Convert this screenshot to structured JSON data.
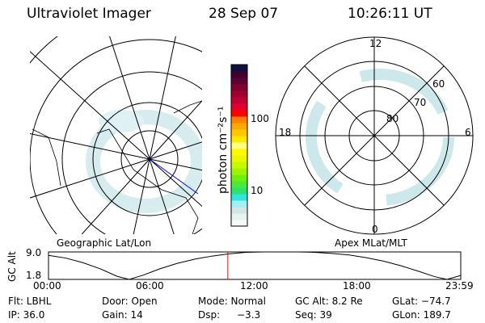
{
  "header": {
    "instrument": "Ultraviolet Imager",
    "date": "28 Sep 07",
    "time": "10:26:11 UT"
  },
  "colorbar": {
    "label": "photon cm⁻²s⁻¹",
    "ticks": [
      "100",
      "10"
    ],
    "colors": [
      "#f4faf6",
      "#e6f2ec",
      "#d2e6e6",
      "#9ef0f4",
      "#2ee6dc",
      "#2ee06e",
      "#4ae838",
      "#6cf010",
      "#a0f400",
      "#c8f800",
      "#e8f800",
      "#fff800",
      "#ffff80",
      "#ffe800",
      "#ffc800",
      "#ffa800",
      "#ff8000",
      "#ff0000",
      "#e00030",
      "#c00030",
      "#a00030",
      "#800030",
      "#600030",
      "#400030",
      "#101040"
    ]
  },
  "left_panel": {
    "label": "Geographic Lat/Lon"
  },
  "right_panel": {
    "label": "Apex MLat/MLT",
    "mlt_labels": [
      "12",
      "18",
      "6",
      "0"
    ],
    "lat_labels": [
      "80",
      "70",
      "60"
    ]
  },
  "chart_data": {
    "type": "line",
    "ylabel": "GC Alt",
    "yticks": [
      "9.0",
      "1.8"
    ],
    "ylim": [
      1.8,
      9.0
    ],
    "xticks": [
      "00:00",
      "06:00",
      "12:00",
      "18:00",
      "23:59"
    ],
    "x_hours": [
      0,
      1,
      2,
      3,
      4,
      4.7,
      5.5,
      6.5,
      7.5,
      8.5,
      9.5,
      10.5,
      11.5,
      12.5,
      13.5,
      14.5,
      15.5,
      16.5,
      17.5,
      18.5,
      19.5,
      20.5,
      21.5,
      22.5,
      23.2,
      23.98
    ],
    "values": [
      8.1,
      7.4,
      6.2,
      4.6,
      2.6,
      1.8,
      2.9,
      4.6,
      6.0,
      7.1,
      7.9,
      8.5,
      8.9,
      9.0,
      9.0,
      9.0,
      8.9,
      8.6,
      8.2,
      7.5,
      6.6,
      5.4,
      4.0,
      2.5,
      1.8,
      2.8
    ],
    "current_time_hours": 10.44,
    "marker_color": "#ff0000"
  },
  "status": {
    "filter": "Flt: LBHL",
    "door": "Door: Open",
    "mode": "Mode: Normal",
    "gc_alt": "GC Alt: 8.2 Re",
    "glat": "GLat: −74.7",
    "ip": "IP: 36.0",
    "gain": "Gain: 14",
    "dsp_label": "Dsp:",
    "dsp_value": "−3.3",
    "seq": "Seq: 39",
    "glon": "GLon: 189.7"
  }
}
